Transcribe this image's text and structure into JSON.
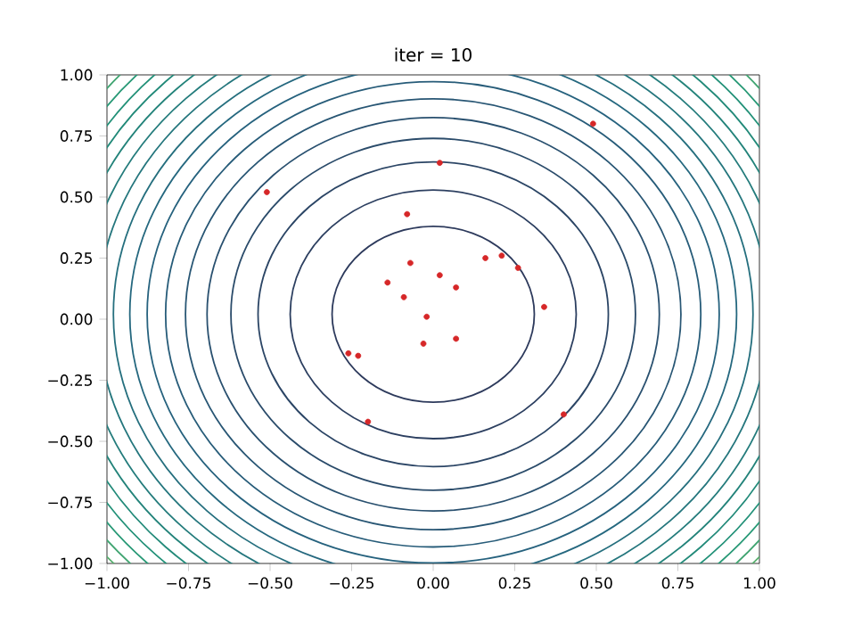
{
  "chart_data": {
    "type": "scatter",
    "title": "iter = 10",
    "color": "#d62728",
    "x": [
      0.49,
      0.02,
      -0.51,
      -0.08,
      -0.07,
      -0.14,
      -0.09,
      0.02,
      0.07,
      0.16,
      0.21,
      0.26,
      0.34,
      -0.02,
      -0.03,
      0.07,
      -0.26,
      -0.23,
      -0.2,
      0.4
    ],
    "values": [
      0.8,
      0.64,
      0.52,
      0.43,
      0.23,
      0.15,
      0.09,
      0.18,
      0.13,
      0.25,
      0.26,
      0.21,
      0.05,
      0.01,
      -0.1,
      -0.08,
      -0.14,
      -0.15,
      -0.42,
      -0.39
    ],
    "xlim": [
      -1,
      1
    ],
    "ylim": [
      -1,
      1
    ],
    "xticks": [
      {
        "value": -1,
        "label": "−1.00"
      },
      {
        "value": -0.75,
        "label": "−0.75"
      },
      {
        "value": -0.5,
        "label": "−0.50"
      },
      {
        "value": -0.25,
        "label": "−0.25"
      },
      {
        "value": 0,
        "label": "0.00"
      },
      {
        "value": 0.25,
        "label": "0.25"
      },
      {
        "value": 0.5,
        "label": "0.50"
      },
      {
        "value": 0.75,
        "label": "0.75"
      },
      {
        "value": 1,
        "label": "1.00"
      }
    ],
    "yticks": [
      {
        "value": -1,
        "label": "−1.00"
      },
      {
        "value": -0.75,
        "label": "−0.75"
      },
      {
        "value": -0.5,
        "label": "−0.50"
      },
      {
        "value": -0.25,
        "label": "−0.25"
      },
      {
        "value": 0,
        "label": "0.00"
      },
      {
        "value": 0.25,
        "label": "0.25"
      },
      {
        "value": 0.5,
        "label": "0.50"
      },
      {
        "value": 0.75,
        "label": "0.75"
      },
      {
        "value": 1,
        "label": "1.00"
      }
    ]
  }
}
